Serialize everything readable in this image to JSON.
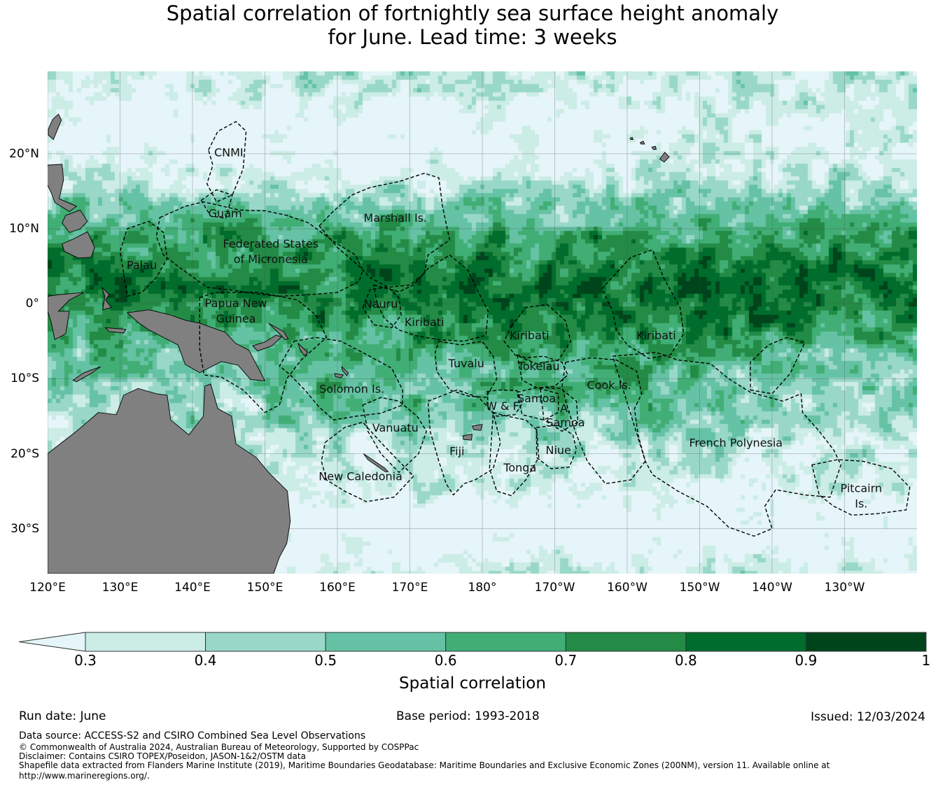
{
  "title": {
    "line1": "Spatial correlation of fortnightly sea surface height anomaly",
    "line2": "for June. Lead time: 3 weeks"
  },
  "map": {
    "lon_range": [
      120,
      240
    ],
    "lat_range": [
      -36,
      31
    ],
    "lon_ticks": [
      {
        "value": 120,
        "label": "120°E"
      },
      {
        "value": 130,
        "label": "130°E"
      },
      {
        "value": 140,
        "label": "140°E"
      },
      {
        "value": 150,
        "label": "150°E"
      },
      {
        "value": 160,
        "label": "160°E"
      },
      {
        "value": 170,
        "label": "170°E"
      },
      {
        "value": 180,
        "label": "180°"
      },
      {
        "value": 190,
        "label": "170°W"
      },
      {
        "value": 200,
        "label": "160°W"
      },
      {
        "value": 210,
        "label": "150°W"
      },
      {
        "value": 220,
        "label": "140°W"
      },
      {
        "value": 230,
        "label": "130°W"
      }
    ],
    "lat_ticks": [
      {
        "value": 20,
        "label": "20°N"
      },
      {
        "value": 10,
        "label": "10°N"
      },
      {
        "value": 0,
        "label": "0°"
      },
      {
        "value": -10,
        "label": "10°S"
      },
      {
        "value": -20,
        "label": "20°S"
      },
      {
        "value": -30,
        "label": "30°S"
      }
    ],
    "land_color": "#808080",
    "region_labels": [
      {
        "lines": [
          "CNMI"
        ],
        "lon": 145.0,
        "lat": 20.2
      },
      {
        "lines": [
          "Guam"
        ],
        "lon": 144.5,
        "lat": 12.1
      },
      {
        "lines": [
          "Marshall Is."
        ],
        "lon": 168.0,
        "lat": 11.5
      },
      {
        "lines": [
          "Federated States",
          "of Micronesia"
        ],
        "lon": 150.8,
        "lat": 7.0
      },
      {
        "lines": [
          "Palau"
        ],
        "lon": 133.0,
        "lat": 5.2
      },
      {
        "lines": [
          "Papua New",
          "Guinea"
        ],
        "lon": 146.0,
        "lat": -0.9
      },
      {
        "lines": [
          "Nauru"
        ],
        "lon": 166.0,
        "lat": 0.0
      },
      {
        "lines": [
          "Kiribati"
        ],
        "lon": 172.0,
        "lat": -2.4
      },
      {
        "lines": [
          "Kiribati"
        ],
        "lon": 186.5,
        "lat": -4.2
      },
      {
        "lines": [
          "Kiribati"
        ],
        "lon": 204.0,
        "lat": -4.2
      },
      {
        "lines": [
          "Tuvalu"
        ],
        "lon": 177.8,
        "lat": -7.9
      },
      {
        "lines": [
          "Tokelau"
        ],
        "lon": 187.8,
        "lat": -8.3
      },
      {
        "lines": [
          "Cook Is."
        ],
        "lon": 197.5,
        "lat": -10.8
      },
      {
        "lines": [
          "Solomon Is."
        ],
        "lon": 162.0,
        "lat": -11.3
      },
      {
        "lines": [
          "Samoa"
        ],
        "lon": 187.5,
        "lat": -12.6
      },
      {
        "lines": [
          "W & F"
        ],
        "lon": 182.8,
        "lat": -13.6
      },
      {
        "lines": [
          "A."
        ],
        "lon": 191.5,
        "lat": -13.9
      },
      {
        "lines": [
          "Samoa"
        ],
        "lon": 191.5,
        "lat": -15.8
      },
      {
        "lines": [
          "Vanuatu"
        ],
        "lon": 168.0,
        "lat": -16.5
      },
      {
        "lines": [
          "French Polynesia"
        ],
        "lon": 215.0,
        "lat": -18.5
      },
      {
        "lines": [
          "Fiji"
        ],
        "lon": 176.5,
        "lat": -19.6
      },
      {
        "lines": [
          "Niue"
        ],
        "lon": 190.5,
        "lat": -19.5
      },
      {
        "lines": [
          "Tonga"
        ],
        "lon": 185.2,
        "lat": -21.8
      },
      {
        "lines": [
          "New Caledonia"
        ],
        "lon": 163.2,
        "lat": -23.0
      },
      {
        "lines": [
          "Pitcairn",
          "Is."
        ],
        "lon": 232.3,
        "lat": -25.6
      }
    ]
  },
  "colorbar": {
    "title": "Spatial correlation",
    "ticks": [
      "0.3",
      "0.4",
      "0.5",
      "0.6",
      "0.7",
      "0.8",
      "0.9",
      "1"
    ],
    "colors": [
      "#e5f5f9",
      "#ccece6",
      "#99d8c9",
      "#66c2a4",
      "#41ae76",
      "#238b45",
      "#006d2c",
      "#00441b"
    ]
  },
  "footer": {
    "run_date": "Run date: June",
    "base_period": "Base period: 1993-2018",
    "issued": "Issued: 12/03/2024",
    "data_source": "Data source: ACCESS-S2 and CSIRO Combined Sea Level Observations",
    "copyright": "© Commonwealth of Australia 2024, Australian Bureau of Meteorology, Supported by COSPPac",
    "disclaimer": "Disclaimer: Contains CSIRO TOPEX/Poseidon, JASON-1&2/OSTM data",
    "shapefile": "Shapefile data extracted from Flanders Marine Institute (2019), Maritime Boundaries Geodatabase: Maritime Boundaries and Exclusive Economic Zones (200NM), version 11. Available online at",
    "url": "http://www.marineregions.org/."
  }
}
